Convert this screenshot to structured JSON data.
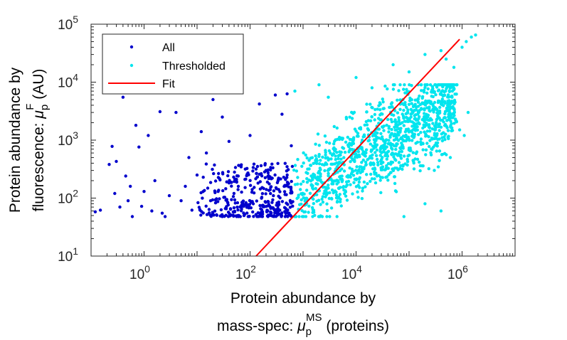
{
  "chart_data": {
    "type": "scatter",
    "xscale": "log",
    "yscale": "log",
    "xlim": [
      0.1,
      10000000
    ],
    "ylim": [
      10,
      100000
    ],
    "x_ticks": [
      {
        "value": 1,
        "base": "10",
        "exp": "0"
      },
      {
        "value": 100,
        "base": "10",
        "exp": "2"
      },
      {
        "value": 10000,
        "base": "10",
        "exp": "4"
      },
      {
        "value": 1000000,
        "base": "10",
        "exp": "6"
      }
    ],
    "y_ticks": [
      {
        "value": 10,
        "base": "10",
        "exp": "1"
      },
      {
        "value": 100,
        "base": "10",
        "exp": "2"
      },
      {
        "value": 1000,
        "base": "10",
        "exp": "3"
      },
      {
        "value": 10000,
        "base": "10",
        "exp": "4"
      },
      {
        "value": 100000,
        "base": "10",
        "exp": "5"
      }
    ],
    "xlabel": {
      "line1": "Protein abundance by",
      "line2_prefix": "mass-spec: ",
      "symbol": "μ",
      "subscript": "p",
      "superscript": "MS",
      "line2_suffix": " (proteins)"
    },
    "ylabel": {
      "line1": "Protein abundance by",
      "line2_prefix": "fluorescence: ",
      "symbol": "μ",
      "subscript": "p",
      "superscript": "F",
      "line2_suffix": " (AU)"
    },
    "legend": {
      "position": "top-left",
      "entries": [
        {
          "label": "All",
          "color": "#0000cc",
          "marker": "dot"
        },
        {
          "label": "Thresholded",
          "color": "#00e5ee",
          "marker": "dot"
        },
        {
          "label": "Fit",
          "color": "#ff0000",
          "marker": "line"
        }
      ]
    },
    "fit_line": {
      "color": "#ff0000",
      "points": [
        [
          130,
          10
        ],
        [
          900000,
          55000
        ]
      ]
    },
    "series": [
      {
        "name": "All",
        "color": "#0000cc",
        "points": [
          [
            0.12,
            58
          ],
          [
            0.15,
            62
          ],
          [
            0.22,
            380
          ],
          [
            0.25,
            780
          ],
          [
            0.28,
            120
          ],
          [
            0.3,
            430
          ],
          [
            0.35,
            70
          ],
          [
            0.4,
            5500
          ],
          [
            0.45,
            240
          ],
          [
            0.5,
            90
          ],
          [
            0.55,
            160
          ],
          [
            0.6,
            48
          ],
          [
            0.7,
            1800
          ],
          [
            0.8,
            760
          ],
          [
            0.9,
            72
          ],
          [
            1.0,
            130
          ],
          [
            1.2,
            1200
          ],
          [
            1.4,
            60
          ],
          [
            1.6,
            200
          ],
          [
            2.0,
            3100
          ],
          [
            2.2,
            55
          ],
          [
            2.5,
            48
          ],
          [
            3.0,
            110
          ],
          [
            4.0,
            3000
          ],
          [
            5.0,
            90
          ],
          [
            6.0,
            160
          ],
          [
            7.0,
            500
          ],
          [
            8.0,
            62
          ],
          [
            10,
            250
          ],
          [
            12,
            1400
          ],
          [
            15,
            600
          ],
          [
            18,
            90
          ],
          [
            20,
            5000
          ],
          [
            25,
            130
          ],
          [
            30,
            2500
          ],
          [
            40,
            950
          ],
          [
            60,
            160
          ],
          [
            80,
            210
          ],
          [
            100,
            1200
          ],
          [
            150,
            4200
          ],
          [
            200,
            300
          ],
          [
            300,
            6000
          ],
          [
            400,
            2800
          ],
          [
            500,
            6300
          ],
          [
            600,
            800
          ]
        ],
        "cloud": {
          "x_range": [
            10,
            650
          ],
          "y_range": [
            48,
            400
          ],
          "count": 360
        }
      },
      {
        "name": "Thresholded",
        "color": "#00e5ee",
        "points": [
          [
            700,
            7000
          ],
          [
            2000,
            9000
          ],
          [
            3000,
            5500
          ],
          [
            10000,
            12000
          ],
          [
            20000,
            8000
          ],
          [
            50000,
            20000
          ],
          [
            100000,
            15000
          ],
          [
            200000,
            30000
          ],
          [
            400000,
            35000
          ],
          [
            500000,
            25000
          ],
          [
            700000,
            18000
          ],
          [
            800000,
            9000
          ],
          [
            1000000,
            40000
          ],
          [
            1200000,
            50000
          ],
          [
            1500000,
            60000
          ],
          [
            1800000,
            65000
          ],
          [
            1300000,
            3000
          ],
          [
            1100000,
            1200
          ],
          [
            300000,
            300
          ],
          [
            600000,
            500
          ],
          [
            200000,
            80
          ],
          [
            400000,
            60
          ],
          [
            80000,
            48
          ],
          [
            900000,
            1500
          ]
        ],
        "cloud": {
          "x_range": [
            650,
            800000
          ],
          "y_range": [
            48,
            9000
          ],
          "count": 1200
        }
      }
    ]
  }
}
